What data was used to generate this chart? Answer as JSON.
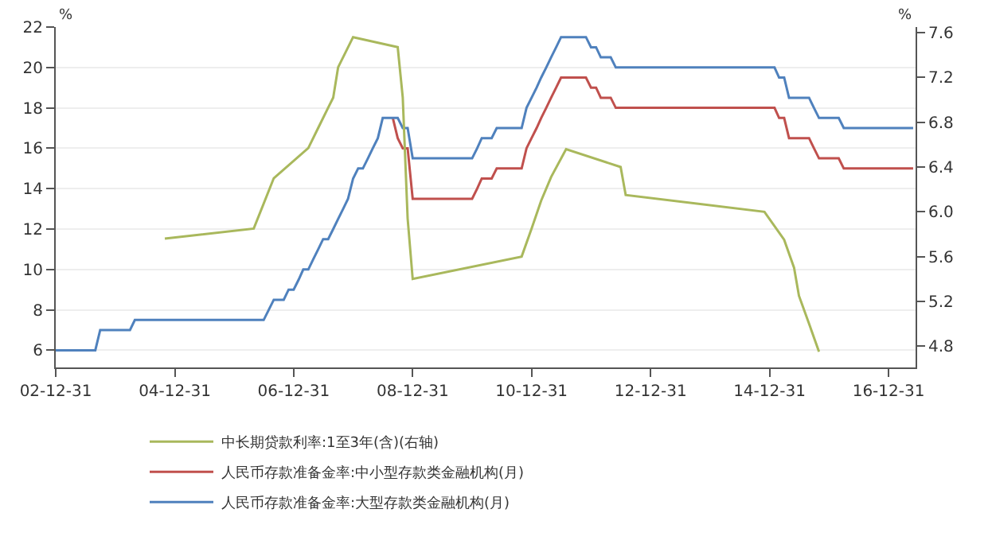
{
  "chart_data": {
    "type": "line",
    "ylabel": "%",
    "y2label": "%",
    "xlim": [
      "2002-12-31",
      "2017-06-15"
    ],
    "xticks": [
      {
        "value": "2002-12-31",
        "label": "02-12-31"
      },
      {
        "value": "2004-12-31",
        "label": "04-12-31"
      },
      {
        "value": "2006-12-31",
        "label": "06-12-31"
      },
      {
        "value": "2008-12-31",
        "label": "08-12-31"
      },
      {
        "value": "2010-12-31",
        "label": "10-12-31"
      },
      {
        "value": "2012-12-31",
        "label": "12-12-31"
      },
      {
        "value": "2014-12-31",
        "label": "14-12-31"
      },
      {
        "value": "2016-12-31",
        "label": "16-12-31"
      }
    ],
    "ylim": [
      5.15,
      22
    ],
    "yticks": [
      6,
      8,
      10,
      12,
      14,
      16,
      18,
      20,
      22
    ],
    "y2lim": [
      4.61,
      7.65
    ],
    "y2ticks": [
      4.8,
      5.2,
      5.6,
      {
        "value": 6,
        "label": "6.0"
      },
      6.4,
      6.8,
      7.2,
      7.6
    ],
    "grid": "y",
    "legend": "bottom",
    "series": [
      {
        "name": "中长期贷款利率:1至3年(含)(右轴)",
        "color": "#a9b85c",
        "axis": "y2",
        "x": [
          "2004-10-31",
          "2006-04-30",
          "2006-08-31",
          "2007-03-31",
          "2007-05-31",
          "2007-07-31",
          "2007-08-31",
          "2007-09-30",
          "2007-12-31",
          "2008-09-30",
          "2008-10-31",
          "2008-11-30",
          "2008-12-31",
          "2010-10-31",
          "2010-12-31",
          "2011-02-28",
          "2011-04-30",
          "2011-07-31",
          "2012-06-30",
          "2012-07-31",
          "2014-11-30",
          "2015-03-31",
          "2015-05-31",
          "2015-06-30",
          "2015-08-31",
          "2015-10-31"
        ],
        "values": [
          5.76,
          5.85,
          6.3,
          6.57,
          6.75,
          6.93,
          7.02,
          7.29,
          7.56,
          7.47,
          7.02,
          5.94,
          5.4,
          5.6,
          5.85,
          6.1,
          6.31,
          6.56,
          6.4,
          6.15,
          6.0,
          5.75,
          5.5,
          5.25,
          5.0,
          4.75
        ]
      },
      {
        "name": "人民币存款准备金率:中小型存款类金融机构(月)",
        "color": "#c0504d",
        "x": [
          "2008-08-31",
          "2008-09-30",
          "2008-10-31",
          "2008-11-30",
          "2008-12-31",
          "2009-12-31",
          "2010-01-31",
          "2010-02-28",
          "2010-04-30",
          "2010-05-31",
          "2010-10-31",
          "2010-11-30",
          "2010-12-31",
          "2011-01-31",
          "2011-02-28",
          "2011-03-31",
          "2011-04-30",
          "2011-05-31",
          "2011-06-30",
          "2011-11-30",
          "2011-12-31",
          "2012-01-31",
          "2012-02-29",
          "2012-04-30",
          "2012-05-31",
          "2015-01-31",
          "2015-02-28",
          "2015-03-31",
          "2015-04-30",
          "2015-08-31",
          "2015-09-30",
          "2015-10-31",
          "2016-02-29",
          "2016-03-31",
          "2017-05-31"
        ],
        "values": [
          17.5,
          16.5,
          16,
          16,
          13.5,
          13.5,
          14,
          14.5,
          14.5,
          15,
          15,
          16,
          16.5,
          17,
          17.5,
          18,
          18.5,
          19,
          19.5,
          19.5,
          19,
          19,
          18.5,
          18.5,
          18,
          18,
          17.5,
          17.5,
          16.5,
          16.5,
          16,
          15.5,
          15.5,
          15,
          15
        ]
      },
      {
        "name": "人民币存款准备金率:大型存款类金融机构(月)",
        "color": "#4f81bd",
        "x": [
          "2002-12-31",
          "2003-08-31",
          "2003-09-30",
          "2004-03-31",
          "2004-04-30",
          "2006-06-30",
          "2006-07-31",
          "2006-08-31",
          "2006-10-31",
          "2006-11-30",
          "2006-12-31",
          "2007-01-31",
          "2007-02-28",
          "2007-03-31",
          "2007-04-30",
          "2007-05-31",
          "2007-06-30",
          "2007-07-31",
          "2007-08-31",
          "2007-09-30",
          "2007-10-31",
          "2007-11-30",
          "2007-12-31",
          "2008-01-31",
          "2008-02-29",
          "2008-03-31",
          "2008-04-30",
          "2008-05-31",
          "2008-06-30",
          "2008-09-30",
          "2008-10-31",
          "2008-11-30",
          "2008-12-31",
          "2009-12-31",
          "2010-01-31",
          "2010-02-28",
          "2010-04-30",
          "2010-05-31",
          "2010-10-31",
          "2010-11-30",
          "2010-12-31",
          "2011-01-31",
          "2011-02-28",
          "2011-03-31",
          "2011-04-30",
          "2011-05-31",
          "2011-06-30",
          "2011-11-30",
          "2011-12-31",
          "2012-01-31",
          "2012-02-29",
          "2012-04-30",
          "2012-05-31",
          "2015-01-31",
          "2015-02-28",
          "2015-03-31",
          "2015-04-30",
          "2015-08-31",
          "2015-09-30",
          "2015-10-31",
          "2016-02-29",
          "2016-03-31",
          "2017-05-31"
        ],
        "values": [
          6,
          6,
          7,
          7,
          7.5,
          7.5,
          8,
          8.5,
          8.5,
          9,
          9,
          9.5,
          10,
          10,
          10.5,
          11,
          11.5,
          11.5,
          12,
          12.5,
          13,
          13.5,
          14.5,
          15,
          15,
          15.5,
          16,
          16.5,
          17.5,
          17.5,
          17,
          17,
          15.5,
          15.5,
          16,
          16.5,
          16.5,
          17,
          17,
          18,
          18.5,
          19,
          19.5,
          20,
          20.5,
          21,
          21.5,
          21.5,
          21,
          21,
          20.5,
          20.5,
          20,
          20,
          19.5,
          19.5,
          18.5,
          18.5,
          18,
          17.5,
          17.5,
          17,
          17
        ]
      }
    ]
  }
}
